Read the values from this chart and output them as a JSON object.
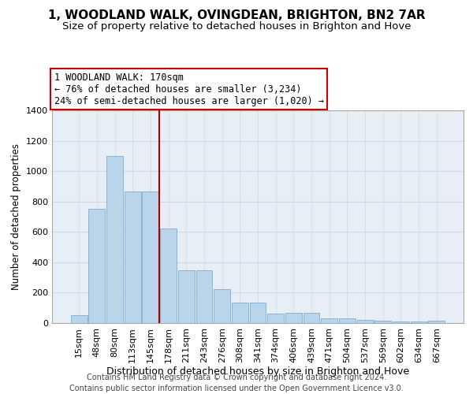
{
  "title": "1, WOODLAND WALK, OVINGDEAN, BRIGHTON, BN2 7AR",
  "subtitle": "Size of property relative to detached houses in Brighton and Hove",
  "xlabel": "Distribution of detached houses by size in Brighton and Hove",
  "ylabel": "Number of detached properties",
  "footer_line1": "Contains HM Land Registry data © Crown copyright and database right 2024.",
  "footer_line2": "Contains public sector information licensed under the Open Government Licence v3.0.",
  "categories": [
    "15sqm",
    "48sqm",
    "80sqm",
    "113sqm",
    "145sqm",
    "178sqm",
    "211sqm",
    "243sqm",
    "276sqm",
    "308sqm",
    "341sqm",
    "374sqm",
    "406sqm",
    "439sqm",
    "471sqm",
    "504sqm",
    "537sqm",
    "569sqm",
    "602sqm",
    "634sqm",
    "667sqm"
  ],
  "values": [
    50,
    750,
    1100,
    865,
    865,
    620,
    345,
    345,
    225,
    135,
    135,
    60,
    70,
    70,
    30,
    30,
    20,
    15,
    10,
    10,
    15
  ],
  "bar_color": "#bad4ea",
  "bar_edge_color": "#7aadd4",
  "property_line_x": 4.5,
  "property_label": "1 WOODLAND WALK: 170sqm",
  "annotation_line1": "← 76% of detached houses are smaller (3,234)",
  "annotation_line2": "24% of semi-detached houses are larger (1,020) →",
  "vline_color": "#aa0000",
  "annotation_box_color": "#cc0000",
  "annotation_bg": "#ffffff",
  "grid_color": "#d0d8e8",
  "bg_color": "#e8eef6",
  "ylim": [
    0,
    1400
  ],
  "yticks": [
    0,
    200,
    400,
    600,
    800,
    1000,
    1200,
    1400
  ],
  "title_fontsize": 11,
  "subtitle_fontsize": 9.5,
  "xlabel_fontsize": 9,
  "ylabel_fontsize": 8.5,
  "tick_fontsize": 8,
  "annotation_fontsize": 8.5,
  "footer_fontsize": 7
}
